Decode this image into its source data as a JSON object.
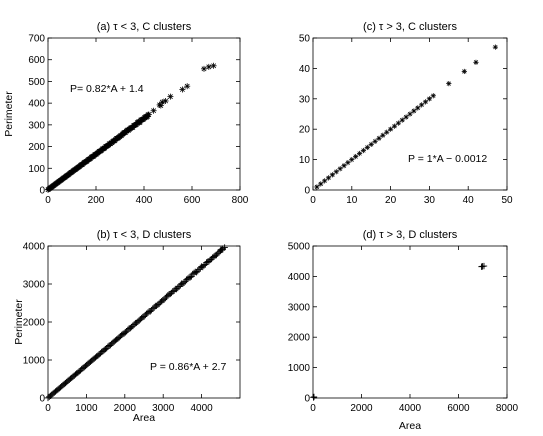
{
  "figure": {
    "xlabel": "Area",
    "ylabel": "Perimeter"
  },
  "chart_data": [
    {
      "type": "scatter",
      "panel": "a",
      "title": "(a) τ < 3, C clusters",
      "xlim": [
        0,
        800
      ],
      "ylim": [
        0,
        700
      ],
      "xticks": [
        "0",
        "200",
        "400",
        "600",
        "800"
      ],
      "yticks": [
        "0",
        "100",
        "200",
        "300",
        "400",
        "500",
        "600",
        "700"
      ],
      "xlabel": "",
      "ylabel": "Perimeter",
      "annotation": "P= 0.82*A + 1.4",
      "marker": "asterisk",
      "fit": {
        "slope": 0.82,
        "intercept": 1.4
      },
      "series": [
        {
          "dense_range": [
            0,
            420
          ],
          "points": [
            [
              440,
              365
            ],
            [
              465,
              392
            ],
            [
              470,
              389
            ],
            [
              476,
              405
            ],
            [
              490,
              410
            ],
            [
              510,
              430
            ],
            [
              560,
              463
            ],
            [
              580,
              478
            ],
            [
              650,
              558
            ],
            [
              670,
              567
            ],
            [
              690,
              572
            ]
          ]
        }
      ]
    },
    {
      "type": "scatter",
      "panel": "c",
      "title": "(c) τ > 3, C clusters",
      "xlim": [
        0,
        50
      ],
      "ylim": [
        0,
        50
      ],
      "xticks": [
        "0",
        "10",
        "20",
        "30",
        "40",
        "50"
      ],
      "yticks": [
        "0",
        "10",
        "20",
        "30",
        "40",
        "50"
      ],
      "xlabel": "",
      "ylabel": "",
      "annotation": "P = 1*A  − 0.0012",
      "marker": "asterisk",
      "fit": {
        "slope": 1,
        "intercept": -0.0012
      },
      "series": [
        {
          "dense_range": [
            1,
            31
          ],
          "points": [
            [
              35,
              35
            ],
            [
              39,
              39
            ],
            [
              42,
              42
            ],
            [
              47,
              47
            ]
          ]
        }
      ]
    },
    {
      "type": "scatter",
      "panel": "b",
      "title": "(b)  τ < 3, D clusters",
      "xlim": [
        0,
        5000
      ],
      "ylim": [
        0,
        4000
      ],
      "xticks": [
        "0",
        "1000",
        "2000",
        "3000",
        "4000"
      ],
      "yticks": [
        "0",
        "1000",
        "2000",
        "3000",
        "4000"
      ],
      "xlabel": "Area",
      "ylabel": "Perimeter",
      "annotation": "P = 0.86*A + 2.7",
      "marker": "plus",
      "fit": {
        "slope": 0.86,
        "intercept": 2.7
      },
      "series": [
        {
          "dense_range": [
            0,
            4550
          ],
          "points": [
            [
              4500,
              3900
            ],
            [
              4550,
              3930
            ],
            [
              4600,
              3960
            ]
          ]
        }
      ]
    },
    {
      "type": "scatter",
      "panel": "d",
      "title": "(d) τ > 3, D clusters",
      "xlim": [
        0,
        8000
      ],
      "ylim": [
        0,
        5000
      ],
      "xticks": [
        "0",
        "2000",
        "4000",
        "6000",
        "8000"
      ],
      "yticks": [
        "0",
        "1000",
        "2000",
        "3000",
        "4000",
        "5000"
      ],
      "xlabel": "Area",
      "ylabel": "",
      "annotation": "",
      "marker": "plus",
      "series": [
        {
          "points": [
            [
              6950,
              4320
            ],
            [
              7050,
              4340
            ],
            [
              6990,
              4330
            ],
            [
              20,
              20
            ],
            [
              40,
              35
            ]
          ]
        }
      ]
    }
  ]
}
